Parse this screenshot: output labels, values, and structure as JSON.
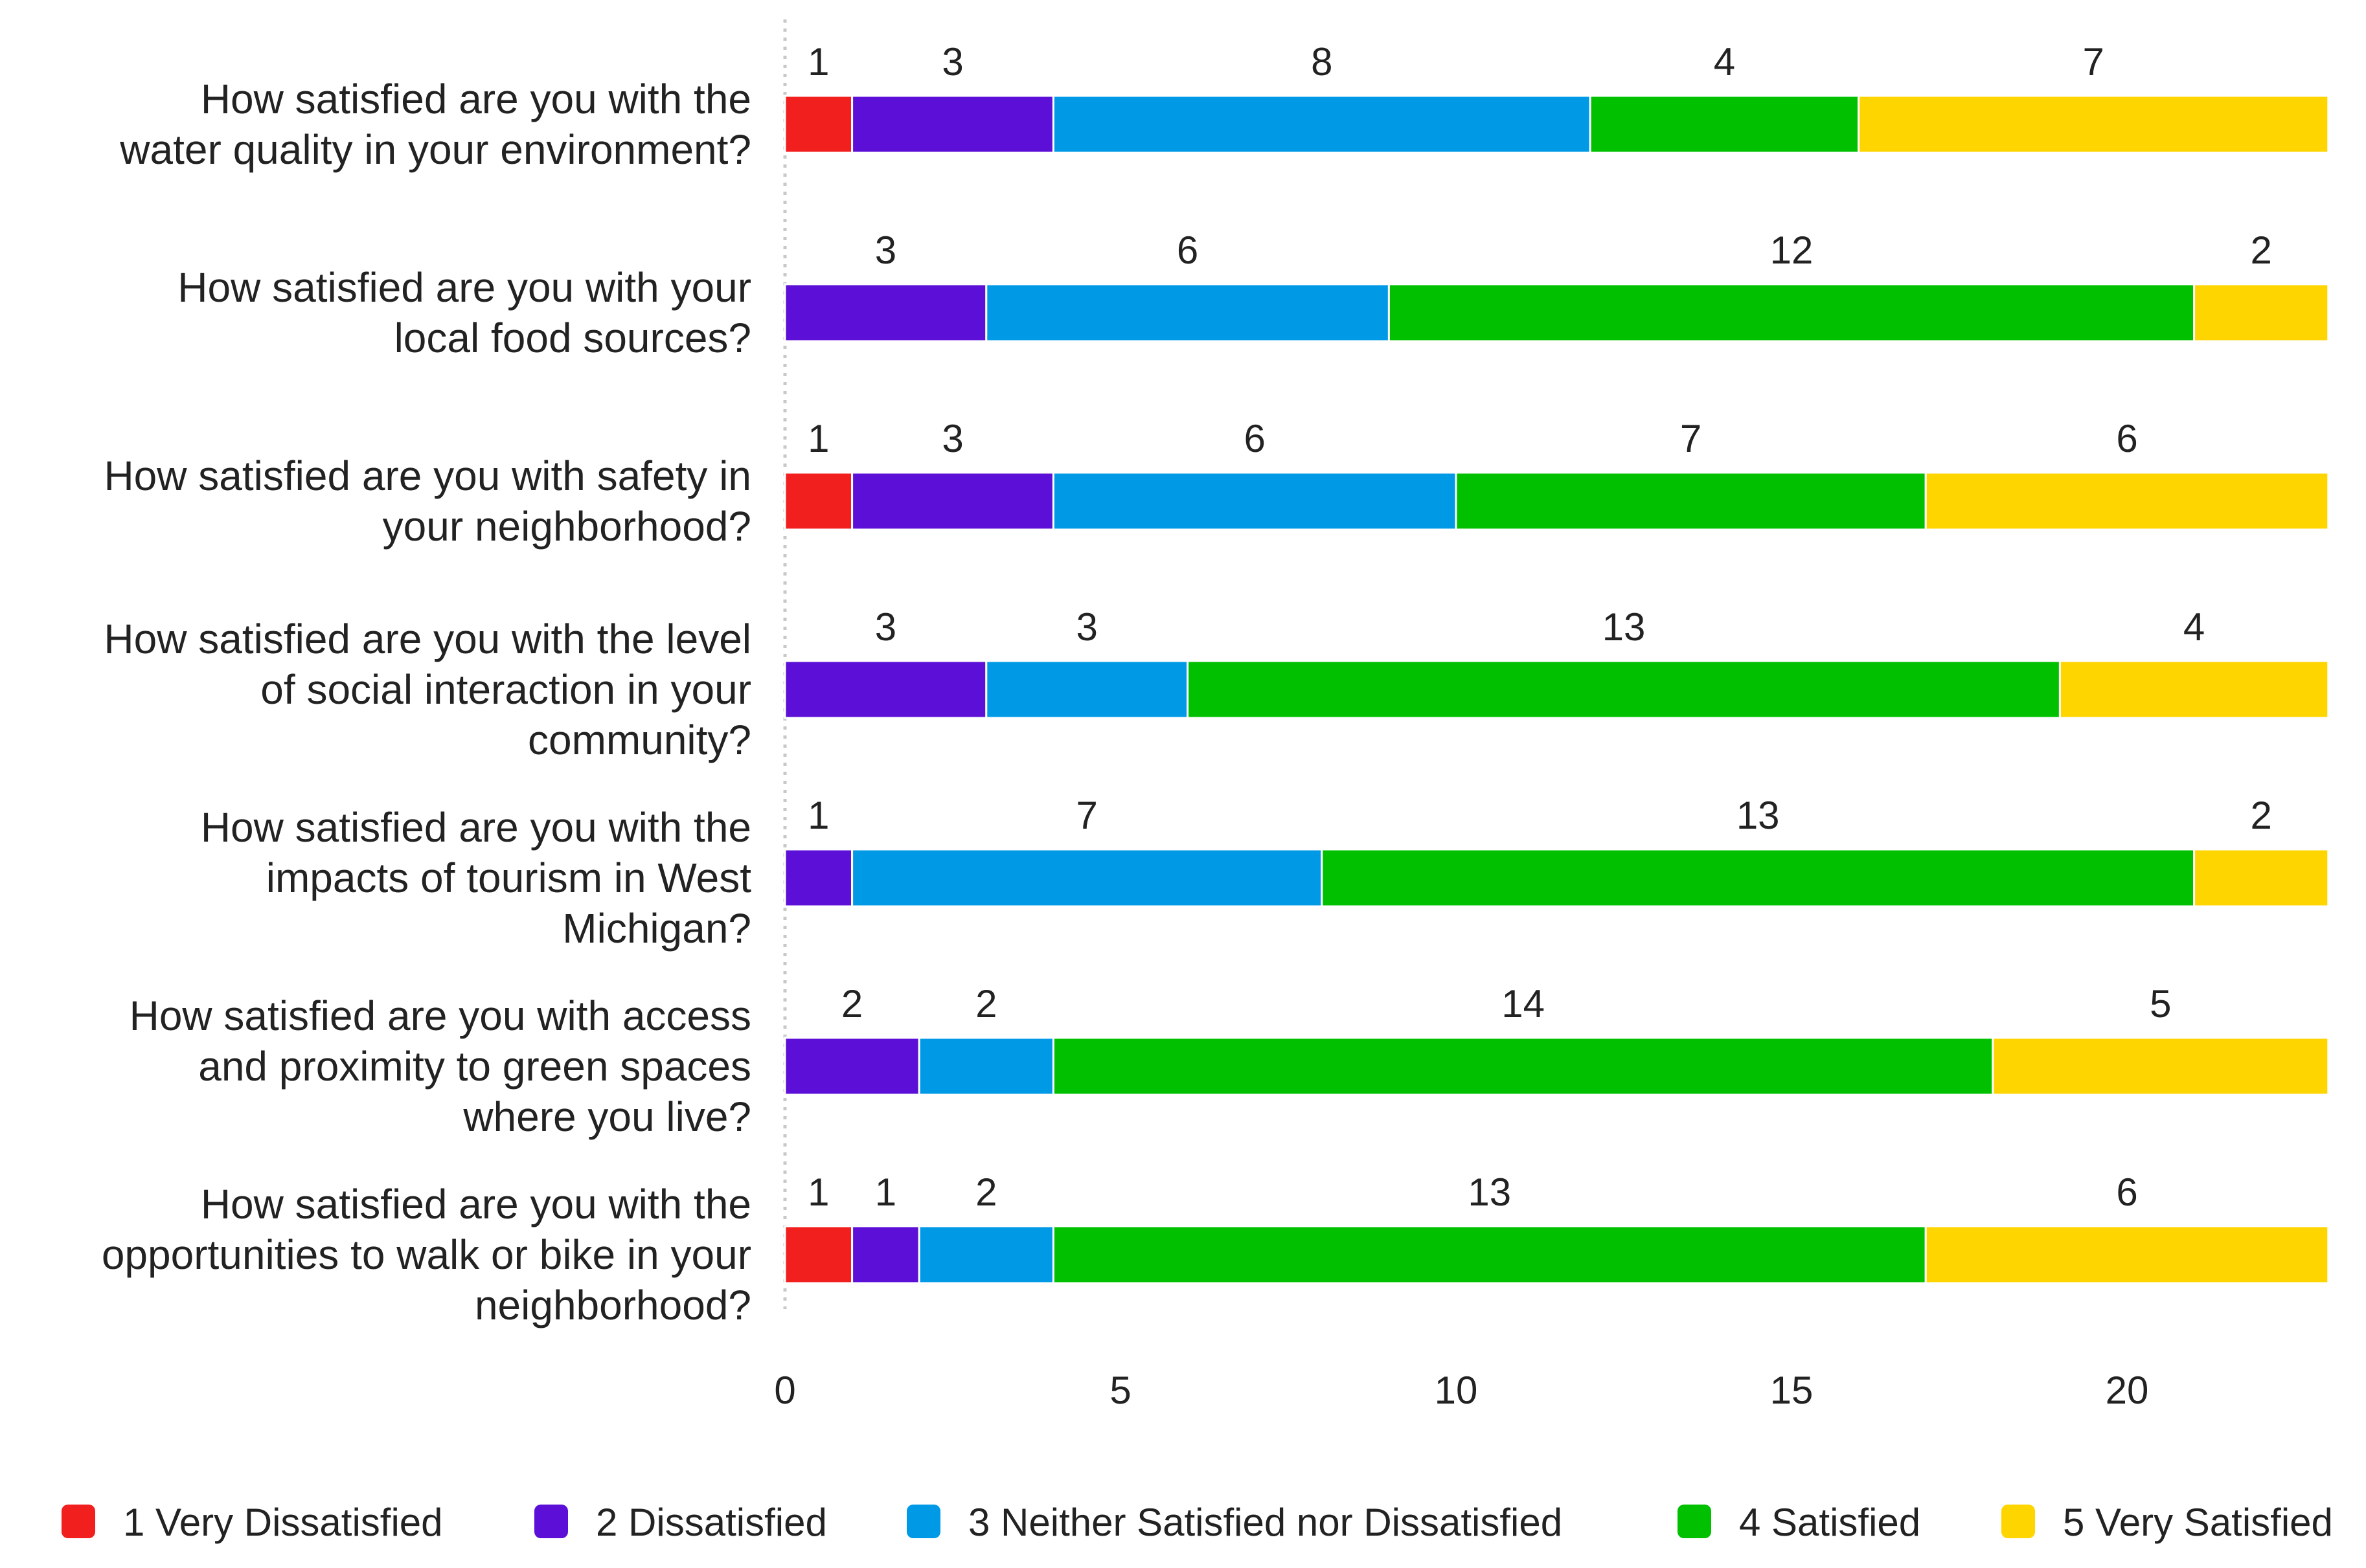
{
  "chart_data": {
    "type": "bar",
    "orientation": "horizontal",
    "stacked": true,
    "title": "",
    "xlabel": "",
    "ylabel": "",
    "xlim": [
      0,
      23
    ],
    "x_ticks": [
      0,
      5,
      10,
      15,
      20
    ],
    "grid": false,
    "legend_position": "bottom",
    "categories": [
      [
        "How satisfied are you with the",
        "water quality in your environment?"
      ],
      [
        "How satisfied are you with your",
        "local food sources?"
      ],
      [
        "How satisfied are you with safety in",
        "your neighborhood?"
      ],
      [
        "How satisfied are you with the level",
        "of social interaction in your",
        "community?"
      ],
      [
        "How satisfied are you with the",
        "impacts of tourism in West",
        "Michigan?"
      ],
      [
        "How satisfied are you with access",
        "and proximity to green spaces",
        "where you live?"
      ],
      [
        "How satisfied are you with the",
        "opportunities to walk or bike in your",
        "neighborhood?"
      ]
    ],
    "series": [
      {
        "name": "1 Very Dissatisfied",
        "color": "#f21f1f",
        "values": [
          1,
          0,
          1,
          0,
          0,
          0,
          1
        ]
      },
      {
        "name": "2 Dissatisfied",
        "color": "#5c0fd6",
        "values": [
          3,
          3,
          3,
          3,
          1,
          2,
          1
        ]
      },
      {
        "name": "3 Neither Satisfied nor Dissatisfied",
        "color": "#0099e6",
        "values": [
          8,
          6,
          6,
          3,
          7,
          2,
          2
        ]
      },
      {
        "name": "4 Satisfied",
        "color": "#00c000",
        "values": [
          4,
          12,
          7,
          13,
          13,
          14,
          13
        ]
      },
      {
        "name": "5 Very Satisfied",
        "color": "#ffd500",
        "values": [
          7,
          2,
          6,
          4,
          2,
          5,
          6
        ]
      }
    ]
  }
}
